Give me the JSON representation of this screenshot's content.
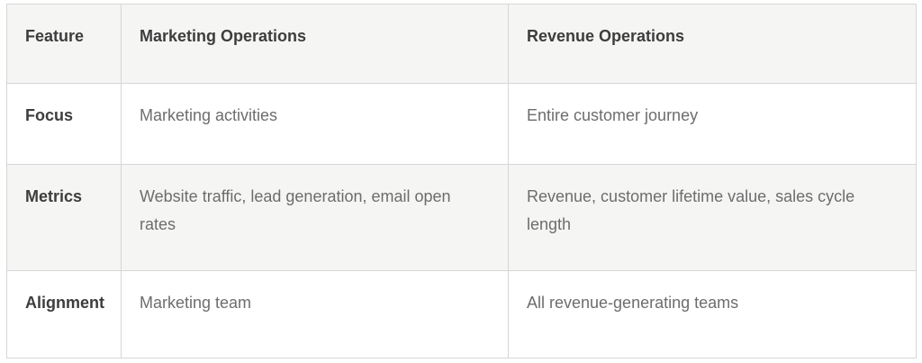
{
  "table": {
    "columns": [
      {
        "label": "Feature"
      },
      {
        "label": "Marketing Operations"
      },
      {
        "label": "Revenue Operations"
      }
    ],
    "rows": [
      {
        "feature": "Focus",
        "marketing": "Marketing activities",
        "revenue": "Entire customer journey"
      },
      {
        "feature": "Metrics",
        "marketing": "Website traffic, lead generation, email open rates",
        "revenue": "Revenue, customer lifetime value, sales cycle length"
      },
      {
        "feature": "Alignment",
        "marketing": "Marketing team",
        "revenue": "All revenue-generating teams"
      }
    ],
    "colors": {
      "header_bg": "#f5f5f4",
      "stripe_bg": "#f5f5f4",
      "border": "#d6d6d6",
      "heading_text": "#3d3d3d",
      "body_text": "#6d6d6d",
      "page_bg": "#ffffff"
    }
  }
}
